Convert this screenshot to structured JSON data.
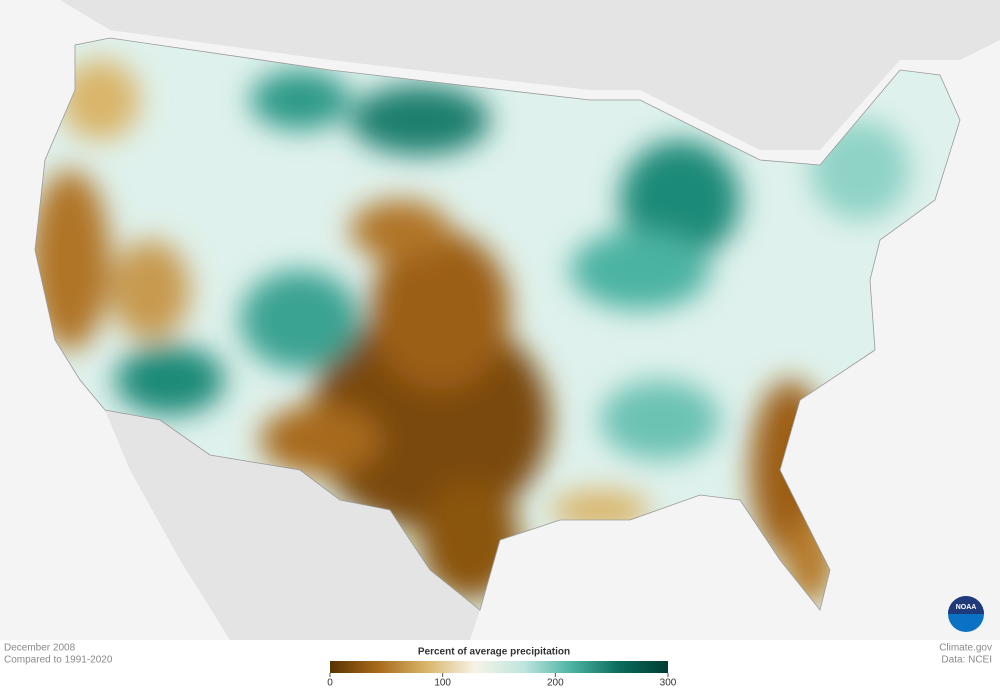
{
  "map": {
    "date": "December 2008",
    "baseline": "Compared to 1991-2020",
    "credit": "Climate.gov",
    "source": "Data: NCEI",
    "logo": "NOAA",
    "colorbar": {
      "title": "Percent of average precipitation",
      "range": [
        0,
        300
      ],
      "ticks": [
        0,
        100,
        200,
        300
      ],
      "colors": [
        "#5a3300",
        "#a86a1c",
        "#d9b56a",
        "#f7f3e6",
        "#bfe6df",
        "#4bb3a2",
        "#0a6b5c",
        "#003d33"
      ]
    }
  }
}
